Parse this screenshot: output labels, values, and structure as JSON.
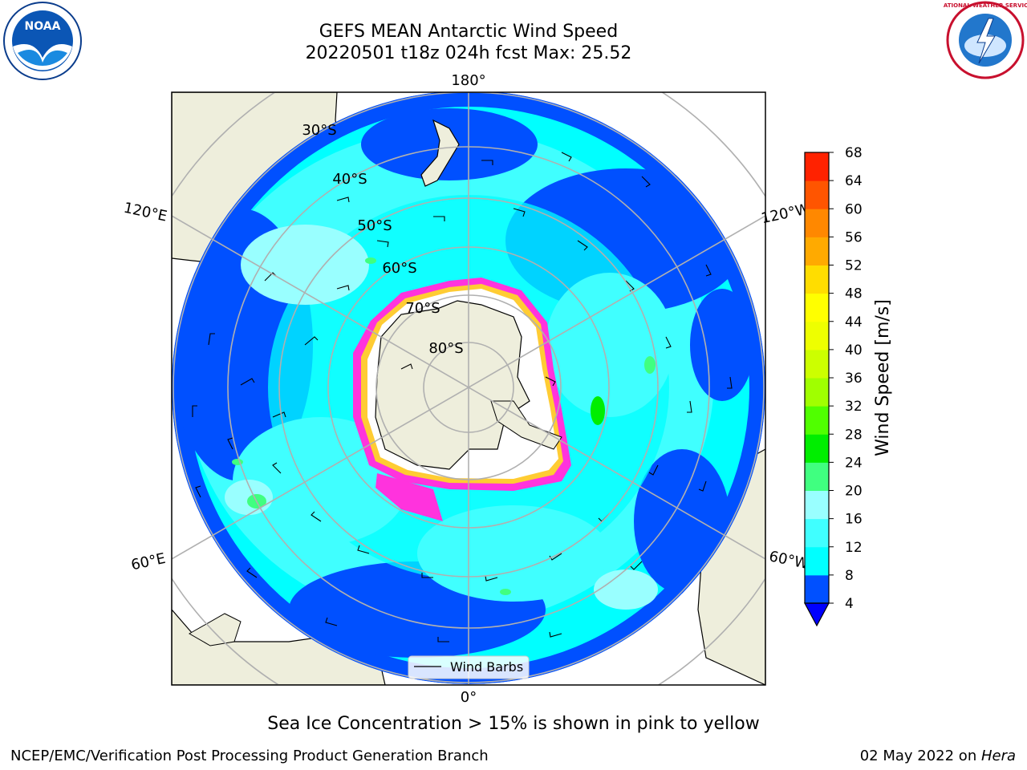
{
  "title": {
    "line1": "GEFS MEAN Antarctic Wind Speed",
    "line2": "20220501 t18z 024h fcst   Max: 25.52"
  },
  "map": {
    "projection": "south-polar-stereographic",
    "longitude_labels": [
      "180°",
      "120°E",
      "120°W",
      "60°E",
      "60°W",
      "0°"
    ],
    "latitude_labels": [
      "30°S",
      "40°S",
      "50°S",
      "60°S",
      "70°S",
      "80°S"
    ],
    "legend": {
      "label": "Wind Barbs"
    },
    "colors": {
      "land": "#eeeedc",
      "ice": "#ffffff",
      "sea_ice_low": "#ff33dd",
      "sea_ice_high": "#ffcc33"
    }
  },
  "colorbar": {
    "label": "Wind Speed [m/s]",
    "ticks": [
      "4",
      "8",
      "12",
      "16",
      "20",
      "24",
      "28",
      "32",
      "36",
      "40",
      "44",
      "48",
      "52",
      "56",
      "60",
      "64",
      "68"
    ],
    "colors": [
      "#0050ff",
      "#00ffff",
      "#40ffff",
      "#99ffff",
      "#40ff80",
      "#00ee00",
      "#50ff00",
      "#a0ff00",
      "#ccff00",
      "#eeff00",
      "#ffff00",
      "#ffdd00",
      "#ffaa00",
      "#ff8800",
      "#ff5500",
      "#ff2200",
      "#ff0000"
    ],
    "extend_color": "#0000ff"
  },
  "logos": {
    "noaa_text": "NOAA",
    "nws_text": "NATIONAL WEATHER SERVICE"
  },
  "footer": {
    "caption": "Sea Ice Concentration > 15% is shown in pink to yellow",
    "credit": "NCEP/EMC/Verification Post Processing Product Generation Branch",
    "date_prefix": "02 May 2022 on ",
    "date_host": "Hera"
  }
}
